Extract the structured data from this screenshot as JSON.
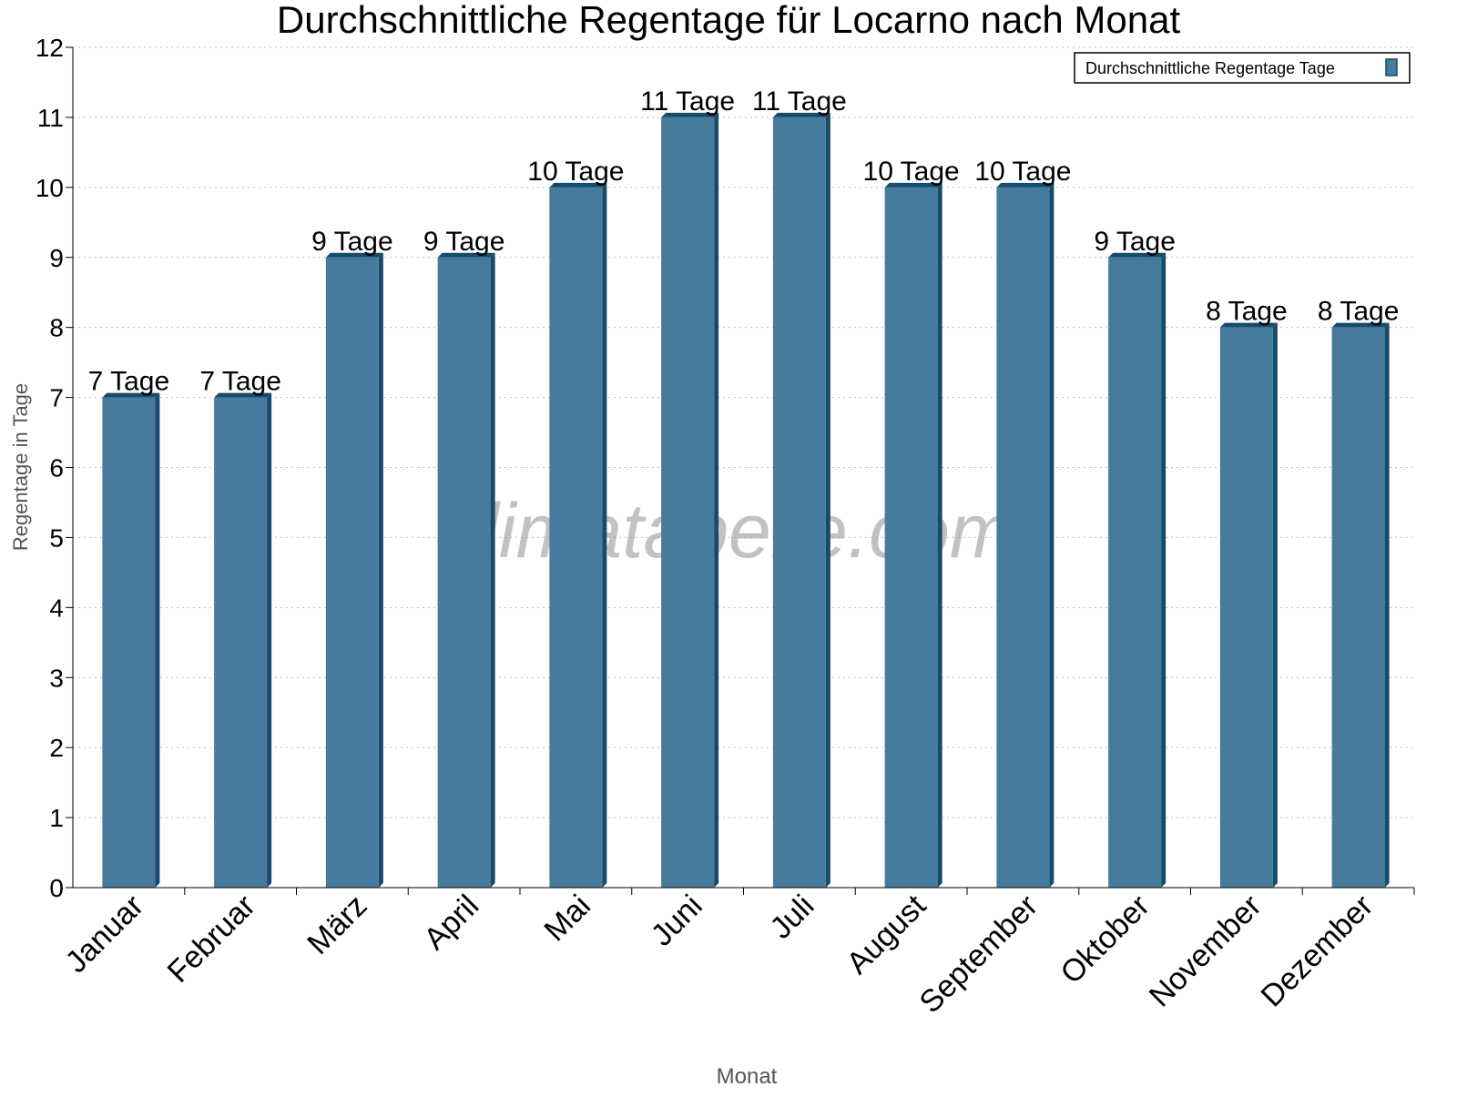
{
  "chart_data": {
    "type": "bar",
    "title": "Durchschnittliche Regentage für Locarno nach Monat",
    "xlabel": "Monat",
    "ylabel": "Regentage in Tage",
    "ylim": [
      0,
      12
    ],
    "yticks": [
      0,
      1,
      2,
      3,
      4,
      5,
      6,
      7,
      8,
      9,
      10,
      11,
      12
    ],
    "grid": true,
    "legend_position": "top-right",
    "categories": [
      "Januar",
      "Februar",
      "März",
      "April",
      "Mai",
      "Juni",
      "Juli",
      "August",
      "September",
      "Oktober",
      "November",
      "Dezember"
    ],
    "series": [
      {
        "name": "Durchschnittliche Regentage Tage",
        "values": [
          7,
          7,
          9,
          9,
          10,
          11,
          11,
          10,
          10,
          9,
          8,
          8
        ],
        "color": "#467b9d",
        "side_color": "#164b6d"
      }
    ],
    "data_labels": [
      "7 Tage",
      "7 Tage",
      "9 Tage",
      "9 Tage",
      "10 Tage",
      "11 Tage",
      "11 Tage",
      "10 Tage",
      "10 Tage",
      "9 Tage",
      "8 Tage",
      "8 Tage"
    ],
    "watermark": "klimatabelle.com"
  }
}
